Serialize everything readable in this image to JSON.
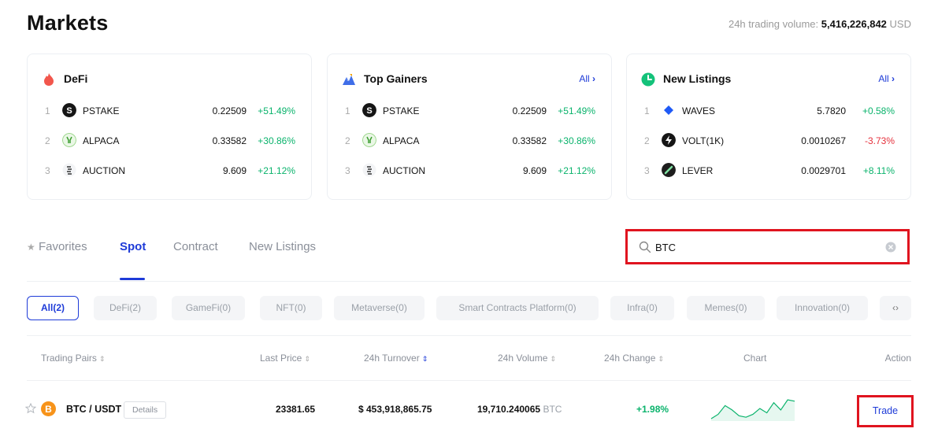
{
  "header": {
    "title": "Markets",
    "volume_label": "24h trading volume:",
    "volume_value": "5,416,226,842",
    "volume_unit": "USD"
  },
  "cards": [
    {
      "title": "DeFi",
      "icon": "flame-icon",
      "all_label": "",
      "rows": [
        {
          "rank": "1",
          "symbol": "PSTAKE",
          "price": "0.22509",
          "change": "+51.49%"
        },
        {
          "rank": "2",
          "symbol": "ALPACA",
          "price": "0.33582",
          "change": "+30.86%"
        },
        {
          "rank": "3",
          "symbol": "AUCTION",
          "price": "9.609",
          "change": "+21.12%"
        }
      ]
    },
    {
      "title": "Top Gainers",
      "icon": "mountain-icon",
      "all_label": "All",
      "rows": [
        {
          "rank": "1",
          "symbol": "PSTAKE",
          "price": "0.22509",
          "change": "+51.49%"
        },
        {
          "rank": "2",
          "symbol": "ALPACA",
          "price": "0.33582",
          "change": "+30.86%"
        },
        {
          "rank": "3",
          "symbol": "AUCTION",
          "price": "9.609",
          "change": "+21.12%"
        }
      ]
    },
    {
      "title": "New Listings",
      "icon": "clock-icon",
      "all_label": "All",
      "rows": [
        {
          "rank": "1",
          "symbol": "WAVES",
          "price": "5.7820",
          "change": "+0.58%"
        },
        {
          "rank": "2",
          "symbol": "VOLT(1K)",
          "price": "0.0010267",
          "change": "-3.73%"
        },
        {
          "rank": "3",
          "symbol": "LEVER",
          "price": "0.0029701",
          "change": "+8.11%"
        }
      ]
    }
  ],
  "tabs": [
    {
      "label": "Favorites",
      "active": false
    },
    {
      "label": "Spot",
      "active": true
    },
    {
      "label": "Contract",
      "active": false
    },
    {
      "label": "New Listings",
      "active": false
    }
  ],
  "search": {
    "value": "BTC",
    "placeholder": ""
  },
  "chips": [
    "All(2)",
    "DeFi(2)",
    "GameFi(0)",
    "NFT(0)",
    "Metaverse(0)",
    "Smart Contracts Platform(0)",
    "Infra(0)",
    "Memes(0)",
    "Innovation(0)"
  ],
  "table": {
    "headers": {
      "pair": "Trading Pairs",
      "last_price": "Last Price",
      "turnover": "24h Turnover",
      "volume": "24h Volume",
      "change": "24h Change",
      "chart": "Chart",
      "action": "Action"
    },
    "rows": [
      {
        "pair": "BTC / USDT",
        "details_label": "Details",
        "last_price": "23381.65",
        "turnover": "$ 453,918,865.75",
        "volume": "19,710.240065",
        "volume_unit": "BTC",
        "change": "+1.98%",
        "trade_label": "Trade",
        "sparkline": [
          3,
          6,
          12,
          9,
          5,
          4,
          6,
          10,
          7,
          14,
          9,
          16,
          15
        ]
      }
    ]
  },
  "colors": {
    "accent": "#1e3bd8",
    "up": "#0ab36c",
    "down": "#e5323d",
    "highlight": "#e0141f"
  }
}
